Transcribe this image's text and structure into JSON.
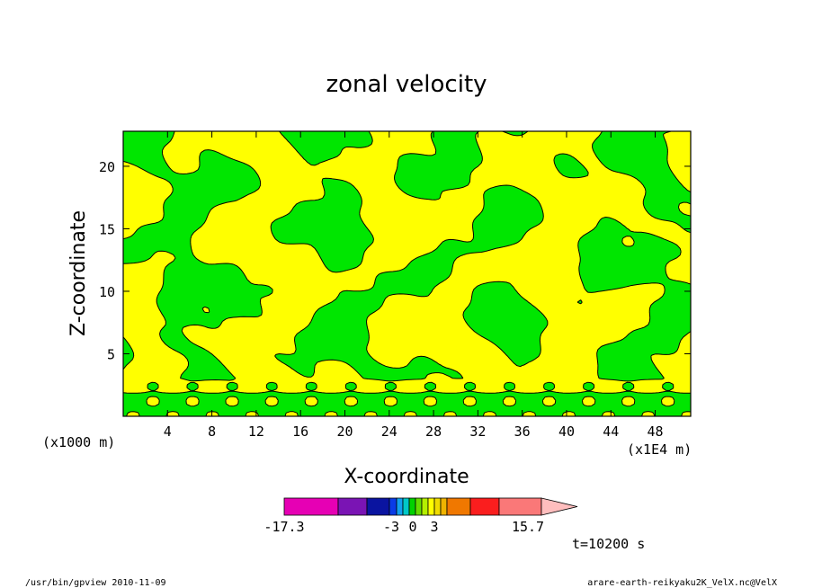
{
  "chart_data": {
    "type": "heatmap",
    "title": "zonal velocity",
    "xlabel": "X-coordinate",
    "ylabel": "Z-coordinate",
    "x_unit": "(x1E4 m)",
    "y_unit": "(x1000 m)",
    "xlim": [
      0,
      51.2
    ],
    "ylim": [
      0,
      22.8
    ],
    "x_ticks": [
      4,
      8,
      12,
      16,
      20,
      24,
      28,
      32,
      36,
      40,
      44,
      48
    ],
    "y_ticks": [
      5,
      10,
      15,
      20
    ],
    "x_tick_labels": [
      "4",
      "8",
      "12",
      "16",
      "20",
      "24",
      "28",
      "32",
      "36",
      "40",
      "44",
      "48"
    ],
    "y_tick_labels": [
      "5",
      "10",
      "15",
      "20"
    ],
    "colorbar": {
      "labels": [
        "-17.3",
        "-3",
        "0",
        "3",
        "15.7"
      ],
      "min": -17.3,
      "max": 15.7,
      "colors": [
        "#e600b4",
        "#7a14b4",
        "#0a14a0",
        "#0a3ce6",
        "#12a0f0",
        "#00c8c8",
        "#00d200",
        "#64dc00",
        "#b4f000",
        "#ffff00",
        "#f0dc00",
        "#f0b400",
        "#f07800",
        "#fa1e1e",
        "#fa7878",
        "#ffbebe"
      ]
    },
    "field_colors": {
      "negative": "#00e600",
      "positive": "#ffff00",
      "contour": "#000000"
    },
    "time_label": "t=10200 s"
  },
  "footer": {
    "program": "/usr/bin/gpview   2010-11-09",
    "file": "arare-earth-reikyaku2K_VelX.nc@VelX"
  }
}
